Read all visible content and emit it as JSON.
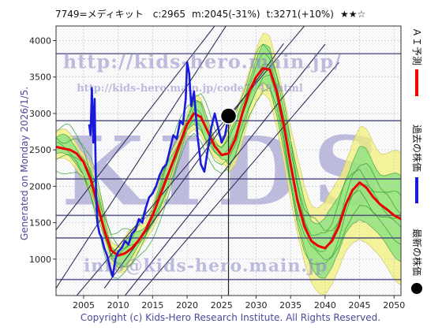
{
  "header": {
    "code": "7749",
    "name": "メディキット",
    "current": "c:2965",
    "mean_target": "m:2045(-31%)",
    "ai_target": "t:3271(+10%)",
    "rating": "★★☆"
  },
  "side_label": "Generated on Monday 2026/1/5.",
  "copyright": "Copyright (c) Kids-Hero Research Institute. All Rights Reserved.",
  "watermarks": {
    "big": "KIDS",
    "url": "http://kids-hero.main.jp/",
    "page": "http://kids-hero.main.jp/code7749.html",
    "email": "info@kids-hero.main.jp"
  },
  "legend": {
    "ai_forecast": "ＡＩ予測",
    "past_price": "過去の株価",
    "latest_price": "最新の株価"
  },
  "colors": {
    "ai": "#ee0000",
    "past": "#1a1adc",
    "band_fill": "#7de07d",
    "band_outer": "#f2f07a",
    "grid_strong": "#45457a",
    "grid_minor": "#bdbdd8",
    "trend": "#30305a",
    "watermark": "#8c88c4"
  },
  "chart_data": {
    "type": "line",
    "title": "7749=メディキット c:2965 m:2045(-31%) t:3271(+10%) ★★☆",
    "xlabel": "",
    "ylabel": "",
    "xlim": [
      2001,
      2051
    ],
    "ylim": [
      500,
      4200
    ],
    "x_ticks": [
      2005,
      2010,
      2015,
      2020,
      2025,
      2030,
      2035,
      2040,
      2045,
      2050
    ],
    "y_ticks": [
      1000,
      1500,
      2000,
      2500,
      3000,
      3500,
      4000
    ],
    "grid": true,
    "legend": "right-vertical",
    "support_resistance_lines": [
      720,
      1290,
      1600,
      2100,
      2900,
      3820
    ],
    "latest": {
      "x": 2026.0,
      "y": 2965
    },
    "series": [
      {
        "name": "過去の株価",
        "x": [
          2005.8,
          2006.0,
          2006.2,
          2006.4,
          2006.6,
          2006.8,
          2007.0,
          2007.3,
          2007.6,
          2008.0,
          2008.4,
          2008.8,
          2009.2,
          2009.6,
          2010.0,
          2010.5,
          2011.0,
          2011.5,
          2012.0,
          2012.5,
          2013.0,
          2013.5,
          2014.0,
          2014.5,
          2015.0,
          2015.5,
          2016.0,
          2016.5,
          2017.0,
          2017.5,
          2018.0,
          2018.5,
          2019.0,
          2019.4,
          2019.8,
          2020.0,
          2020.3,
          2020.6,
          2021.0,
          2021.5,
          2022.0,
          2022.5,
          2023.0,
          2023.5,
          2024.0,
          2024.5,
          2025.0,
          2025.5,
          2026.0
        ],
        "y": [
          2850,
          2700,
          3350,
          2600,
          3200,
          1900,
          1500,
          1350,
          1300,
          1150,
          1050,
          900,
          760,
          1000,
          1100,
          1150,
          1250,
          1200,
          1350,
          1400,
          1550,
          1500,
          1700,
          1850,
          1900,
          2000,
          2150,
          2250,
          2300,
          2500,
          2700,
          2650,
          2900,
          2850,
          3200,
          3700,
          3550,
          3100,
          3300,
          2700,
          2300,
          2200,
          2500,
          2800,
          3000,
          2800,
          2600,
          2700,
          2965
        ]
      },
      {
        "name": "ＡＩ予測",
        "x": [
          2001,
          2002,
          2003,
          2004,
          2005,
          2006,
          2007,
          2008,
          2009,
          2010,
          2011,
          2012,
          2013,
          2014,
          2015,
          2016,
          2017,
          2018,
          2019,
          2020,
          2021,
          2022,
          2023,
          2024,
          2025,
          2026,
          2027,
          2028,
          2029,
          2030,
          2031,
          2032,
          2033,
          2034,
          2035,
          2036,
          2037,
          2038,
          2039,
          2040,
          2041,
          2042,
          2043,
          2044,
          2045,
          2046,
          2047,
          2048,
          2049,
          2050,
          2051
        ],
        "y": [
          2540,
          2520,
          2500,
          2450,
          2330,
          2100,
          1750,
          1400,
          1120,
          1050,
          1080,
          1150,
          1260,
          1400,
          1600,
          1850,
          2100,
          2350,
          2600,
          2850,
          3000,
          2950,
          2750,
          2550,
          2430,
          2450,
          2650,
          3000,
          3300,
          3500,
          3620,
          3600,
          3300,
          2850,
          2300,
          1800,
          1450,
          1250,
          1180,
          1150,
          1250,
          1450,
          1750,
          1950,
          2050,
          1980,
          1850,
          1750,
          1680,
          1600,
          1550
        ]
      }
    ]
  }
}
